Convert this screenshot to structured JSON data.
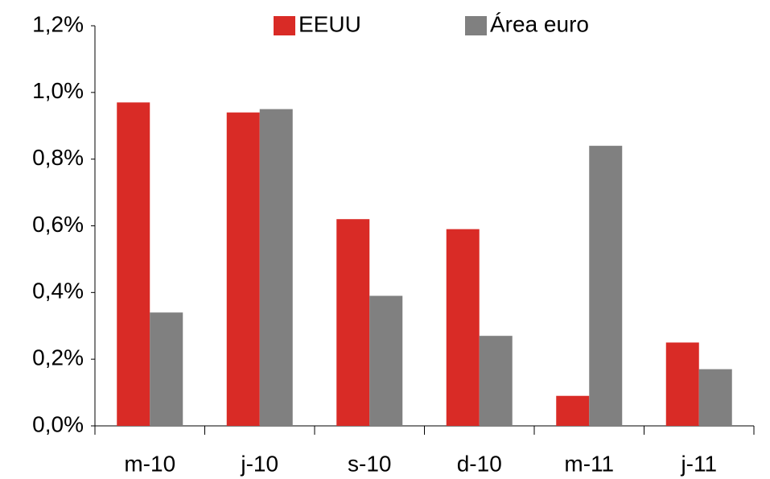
{
  "chart_data": {
    "type": "bar",
    "categories": [
      "m-10",
      "j-10",
      "s-10",
      "d-10",
      "m-11",
      "j-11"
    ],
    "series": [
      {
        "name": "EEUU",
        "color": "#d92b26",
        "values": [
          0.97,
          0.94,
          0.62,
          0.59,
          0.09,
          0.25
        ]
      },
      {
        "name": "Área euro",
        "color": "#808080",
        "values": [
          0.34,
          0.95,
          0.39,
          0.27,
          0.84,
          0.17
        ]
      }
    ],
    "ylim": [
      0,
      1.2
    ],
    "yticks": [
      {
        "value": 0,
        "label": "0,0%"
      },
      {
        "value": 0.2,
        "label": "0,2%"
      },
      {
        "value": 0.4,
        "label": "0,4%"
      },
      {
        "value": 0.6,
        "label": "0,6%"
      },
      {
        "value": 0.8,
        "label": "0,8%"
      },
      {
        "value": 1.0,
        "label": "1,0%"
      },
      {
        "value": 1.2,
        "label": "1,2%"
      }
    ],
    "grid": false,
    "legend": "top"
  }
}
